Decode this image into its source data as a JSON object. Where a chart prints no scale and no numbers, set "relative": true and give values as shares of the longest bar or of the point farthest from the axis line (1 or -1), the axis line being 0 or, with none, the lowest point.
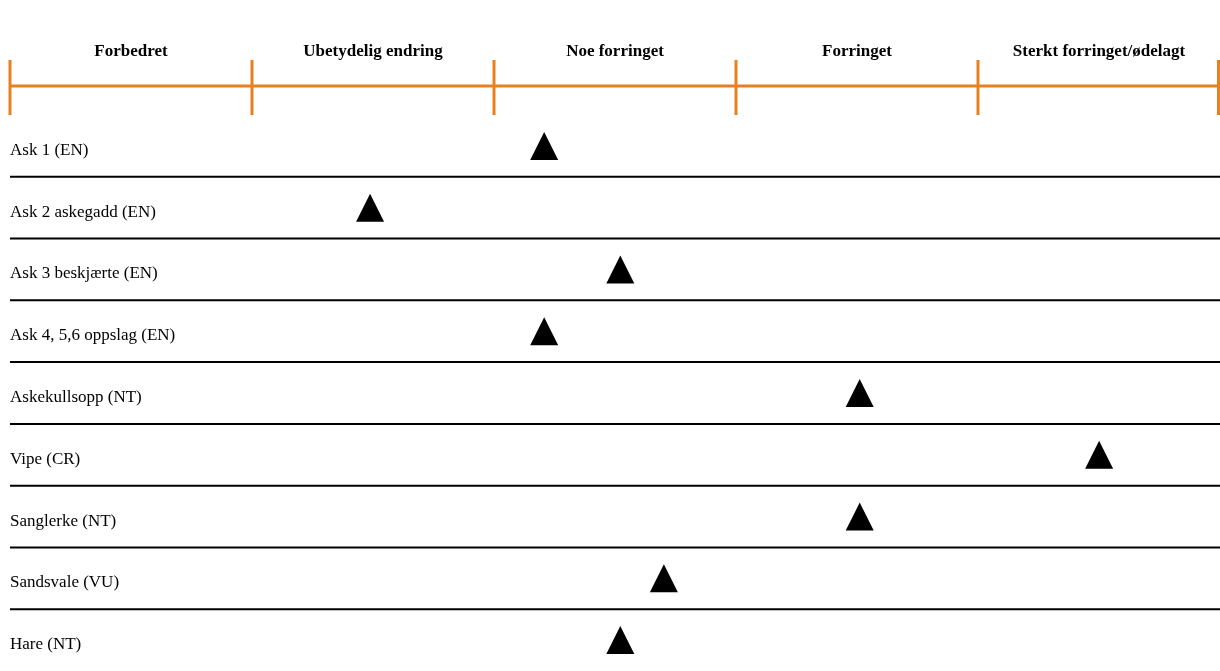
{
  "chart_data": {
    "type": "scatter",
    "orientation": "horizontal",
    "relative": true,
    "categories": [
      "Ask 1 (EN)",
      "Ask 2 askegadd (EN)",
      "Ask 3 beskjærte (EN)",
      "Ask 4, 5,6 oppslag (EN)",
      "Askekullsopp (NT)",
      "Vipe (CR)",
      "Sanglerke (NT)",
      "Sandsvale (VU)",
      "Hare (NT)"
    ],
    "values": [
      0.49,
      0.33,
      0.56,
      0.49,
      0.78,
      1,
      0.78,
      0.6,
      0.56
    ],
    "color": "#000000",
    "marker": "triangle",
    "grid": "y",
    "annotations": [
      "Forbedret",
      "Ubetydelig endring",
      "Noe forringet",
      "Forringet",
      "Sterkt forringet/ødelagt"
    ]
  }
}
